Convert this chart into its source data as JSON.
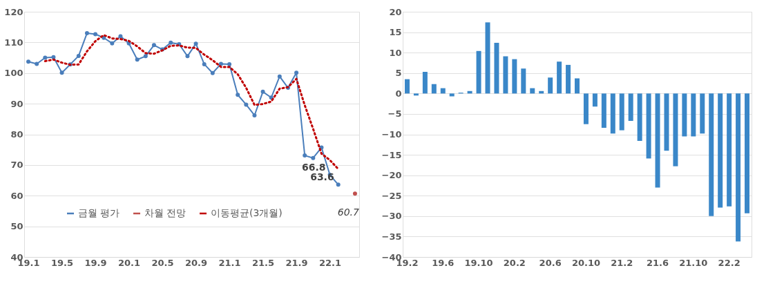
{
  "chart_data": [
    {
      "type": "line",
      "categories": [
        "19.1",
        null,
        null,
        null,
        "19.5",
        null,
        null,
        null,
        "19.9",
        null,
        null,
        null,
        "20.1",
        null,
        null,
        null,
        "20.5",
        null,
        null,
        null,
        "20.9",
        null,
        null,
        null,
        "21.1",
        null,
        null,
        null,
        "21.5",
        null,
        null,
        null,
        "21.9",
        null,
        null,
        null,
        "22.1",
        null,
        null,
        null
      ],
      "ylim": [
        40,
        120
      ],
      "yticks": [
        40,
        50,
        60,
        70,
        80,
        90,
        100,
        110,
        120
      ],
      "grid": "y",
      "legend": "bottom",
      "series": [
        {
          "name": "금월 평가",
          "color": "#4a7ebb",
          "marker": "circle",
          "line_style": "solid",
          "values": [
            103.7,
            103.0,
            105.0,
            105.2,
            100.1,
            102.8,
            105.6,
            113.0,
            112.7,
            111.5,
            109.7,
            112.0,
            109.7,
            104.4,
            105.5,
            109.1,
            107.7,
            109.9,
            109.4,
            105.5,
            109.6,
            102.9,
            100.0,
            103.0,
            102.9,
            92.9,
            89.7,
            86.2,
            93.9,
            92.0,
            98.9,
            95.2,
            100.1,
            73.1,
            72.3,
            75.7,
            66.8,
            63.6,
            null,
            null
          ],
          "value_labels": [
            null,
            null,
            null,
            null,
            null,
            null,
            null,
            null,
            null,
            null,
            null,
            null,
            null,
            null,
            null,
            null,
            null,
            null,
            null,
            null,
            null,
            null,
            null,
            null,
            null,
            null,
            null,
            null,
            null,
            null,
            null,
            null,
            null,
            null,
            null,
            null,
            "66.8",
            "63.6",
            null,
            null
          ]
        },
        {
          "name": "차월 전망",
          "color": "#c0504d",
          "marker": "circle",
          "line_style": "solid",
          "values": [
            null,
            null,
            null,
            null,
            null,
            null,
            null,
            null,
            null,
            null,
            null,
            null,
            null,
            null,
            null,
            null,
            null,
            null,
            null,
            null,
            null,
            null,
            null,
            null,
            null,
            null,
            null,
            null,
            null,
            null,
            null,
            null,
            null,
            null,
            null,
            null,
            null,
            null,
            null,
            60.7
          ],
          "value_labels": [
            null,
            null,
            null,
            null,
            null,
            null,
            null,
            null,
            null,
            null,
            null,
            null,
            null,
            null,
            null,
            null,
            null,
            null,
            null,
            null,
            null,
            null,
            null,
            null,
            null,
            null,
            null,
            null,
            null,
            null,
            null,
            null,
            null,
            null,
            null,
            null,
            null,
            null,
            null,
            "60.7"
          ]
        },
        {
          "name": "이동평균(3개월)",
          "color": "#c00000",
          "marker": "none",
          "line_style": "dotted",
          "values": [
            null,
            null,
            103.9,
            104.4,
            103.4,
            102.7,
            102.8,
            107.1,
            110.4,
            112.4,
            111.3,
            111.1,
            110.5,
            108.7,
            106.5,
            106.3,
            107.4,
            108.9,
            109.0,
            108.3,
            108.2,
            106.0,
            104.2,
            102.0,
            102.0,
            99.6,
            95.2,
            89.6,
            89.9,
            90.7,
            94.9,
            95.4,
            98.1,
            89.5,
            81.8,
            73.7,
            71.6,
            68.7,
            null,
            null
          ]
        }
      ]
    },
    {
      "type": "bar",
      "categories": [
        "19.2",
        null,
        null,
        null,
        "19.6",
        null,
        null,
        null,
        "19.10",
        null,
        null,
        null,
        "20.2",
        null,
        null,
        null,
        "20.6",
        null,
        null,
        null,
        "20.10",
        null,
        null,
        null,
        "21.2",
        null,
        null,
        null,
        "21.6",
        null,
        null,
        null,
        "21.10",
        null,
        null,
        null,
        "22.2",
        null,
        null
      ],
      "ylim": [
        -40,
        20
      ],
      "yticks": [
        -40,
        -35,
        -30,
        -25,
        -20,
        -15,
        -10,
        -5,
        0,
        5,
        10,
        15,
        20
      ],
      "grid": "y",
      "series": [
        {
          "color": "#3a87c8",
          "values": [
            3.5,
            -0.5,
            5.3,
            2.3,
            1.3,
            -0.7,
            0.2,
            0.6,
            10.4,
            17.4,
            12.4,
            9.1,
            8.4,
            6.1,
            1.3,
            0.6,
            3.9,
            7.8,
            7.0,
            3.7,
            -7.5,
            -3.2,
            -8.4,
            -9.8,
            -9.0,
            -6.7,
            -11.6,
            -15.9,
            -23.0,
            -14.0,
            -17.8,
            -10.5,
            -10.5,
            -9.8,
            -30.0,
            -27.9,
            -27.6,
            -36.2,
            -29.3
          ]
        }
      ]
    }
  ]
}
